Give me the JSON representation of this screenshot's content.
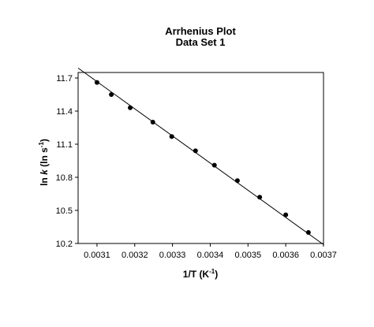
{
  "chart_data": {
    "type": "scatter",
    "title": "Arrhenius Plot",
    "subtitle": "Data Set 1",
    "xlabel": {
      "main": "1/T (K",
      "sup": "-1",
      "tail": ")"
    },
    "ylabel": {
      "prefix": "ln ",
      "italic": "k",
      "middle": " (ln s",
      "sup": "-1",
      "tail": ")"
    },
    "xlim": [
      0.00305,
      0.0037
    ],
    "ylim": [
      10.2,
      11.75
    ],
    "xticks": [
      {
        "value": 0.0031,
        "label": "0.0031"
      },
      {
        "value": 0.0032,
        "label": "0.0032"
      },
      {
        "value": 0.0033,
        "label": "0.0033"
      },
      {
        "value": 0.0034,
        "label": "0.0034"
      },
      {
        "value": 0.0035,
        "label": "0.0035"
      },
      {
        "value": 0.0036,
        "label": "0.0036"
      },
      {
        "value": 0.0037,
        "label": "0.0037"
      }
    ],
    "yticks": [
      {
        "value": 10.2,
        "label": "10.2"
      },
      {
        "value": 10.5,
        "label": "10.5"
      },
      {
        "value": 10.8,
        "label": "10.8"
      },
      {
        "value": 11.1,
        "label": "11.1"
      },
      {
        "value": 11.4,
        "label": "11.4"
      },
      {
        "value": 11.7,
        "label": "11.7"
      }
    ],
    "grid": false,
    "series": [
      {
        "points": [
          {
            "x": 0.0031,
            "y": 11.66
          },
          {
            "x": 0.003138,
            "y": 11.55
          },
          {
            "x": 0.003188,
            "y": 11.43
          },
          {
            "x": 0.003248,
            "y": 11.3
          },
          {
            "x": 0.003298,
            "y": 11.17
          },
          {
            "x": 0.003361,
            "y": 11.04
          },
          {
            "x": 0.003411,
            "y": 10.91
          },
          {
            "x": 0.003472,
            "y": 10.77
          },
          {
            "x": 0.003531,
            "y": 10.62
          },
          {
            "x": 0.0036,
            "y": 10.46
          },
          {
            "x": 0.00366,
            "y": 10.3
          }
        ]
      }
    ],
    "fit_line": {
      "x": [
        0.00305,
        0.0037
      ],
      "y": [
        11.79,
        10.19
      ]
    },
    "colors": {
      "marker": "#000000",
      "line": "#000000",
      "axes": "#000000"
    }
  }
}
